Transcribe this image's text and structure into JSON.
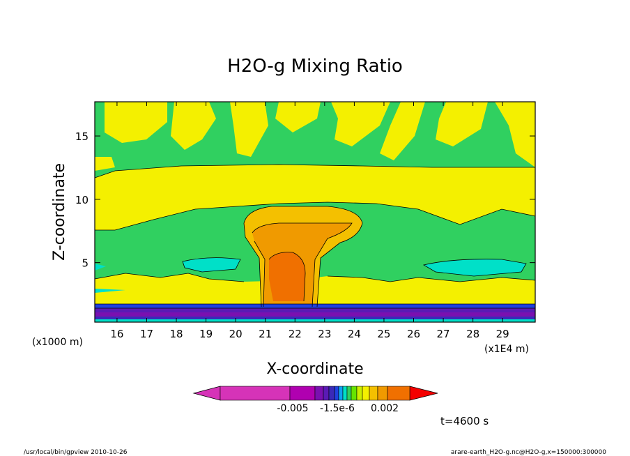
{
  "chart_data": {
    "type": "heatmap",
    "title": "H2O-g Mixing Ratio",
    "xlabel": "X-coordinate",
    "ylabel": "Z-coordinate",
    "x_unit_left": "(x1000 m)",
    "x_unit_right": "(x1E4 m)",
    "xticks": [
      16,
      17,
      18,
      19,
      20,
      21,
      22,
      23,
      24,
      25,
      26,
      27,
      28,
      29
    ],
    "yticks": [
      5,
      10,
      15
    ],
    "xlim": [
      15.25,
      30.1
    ],
    "ylim": [
      0.3,
      17.7
    ],
    "colorbar": {
      "colors": [
        "#d633b8",
        "#b000b0",
        "#7a10b0",
        "#5a1ab5",
        "#3a2ab8",
        "#2040e0",
        "#10a0f0",
        "#00e0c8",
        "#30d060",
        "#66e400",
        "#ccee00",
        "#f4f000",
        "#f4c000",
        "#f09a00",
        "#f07000",
        "#f40000"
      ],
      "labels": [
        "-0.005",
        "-1.5e-6",
        "0.002"
      ]
    },
    "time_label": "t=4600 s",
    "footer_left": "/usr/local/bin/gpview   2010-10-26",
    "footer_right": "arare-earth_H2O-g.nc@H2O-g,x=150000:300000"
  }
}
